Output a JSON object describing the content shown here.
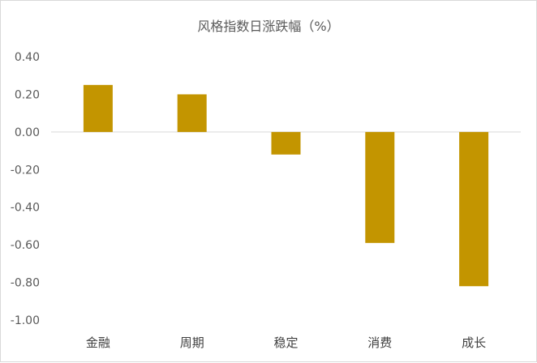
{
  "chart_data": {
    "type": "bar",
    "title": "风格指数日涨跌幅（%）",
    "categories": [
      "金融",
      "周期",
      "稳定",
      "消费",
      "成长"
    ],
    "values": [
      0.25,
      0.2,
      -0.12,
      -0.59,
      -0.82
    ],
    "ylim": [
      -1.0,
      0.4
    ],
    "yticks": [
      "0.40",
      "0.20",
      "0.00",
      "-0.20",
      "-0.40",
      "-0.60",
      "-0.80",
      "-1.00"
    ],
    "grid": false,
    "legend": "none",
    "bar_color": "#c39500",
    "zero_line_color": "#d9d9d9"
  }
}
